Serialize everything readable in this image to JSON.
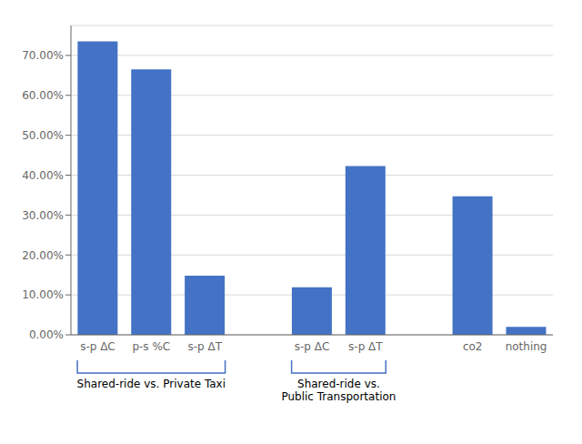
{
  "chart_data": {
    "type": "bar",
    "categories": [
      "s-p ΔC",
      "p-s %C",
      "s-p ΔT",
      null,
      "s-p ΔC",
      "s-p ΔT",
      null,
      "co2",
      "nothing"
    ],
    "values": [
      0.735,
      0.665,
      0.148,
      0,
      0.119,
      0.423,
      0,
      0.347,
      0.02
    ],
    "color": "#4472C4",
    "ylim": [
      0,
      0.775
    ],
    "yticks": [
      {
        "value": 0.0,
        "label": "0.00%"
      },
      {
        "value": 0.1,
        "label": "10.00%"
      },
      {
        "value": 0.2,
        "label": "20.00%"
      },
      {
        "value": 0.3,
        "label": "30.00%"
      },
      {
        "value": 0.4,
        "label": "40.00%"
      },
      {
        "value": 0.5,
        "label": "50.00%"
      },
      {
        "value": 0.6,
        "label": "60.00%"
      },
      {
        "value": 0.7,
        "label": "70.00%"
      }
    ],
    "grid": true,
    "annotations": [
      {
        "text": "Shared-ride vs. Private Taxi",
        "start": 0,
        "end": 2
      },
      {
        "text": "Shared-ride vs.\nPublic Transportation",
        "start": 4,
        "end": 5
      }
    ]
  }
}
